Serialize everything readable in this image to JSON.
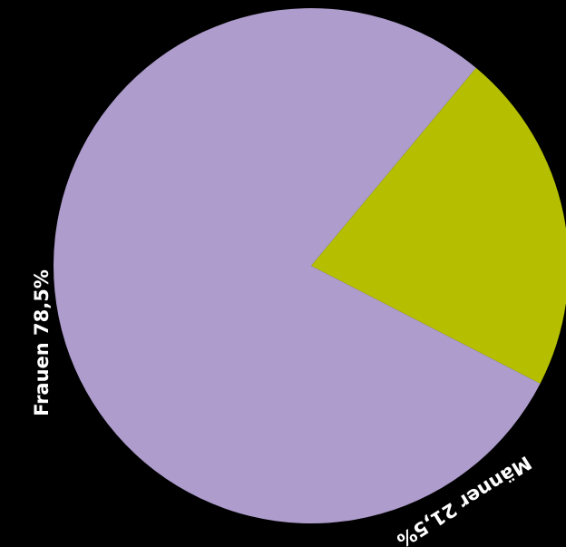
{
  "chart_data": {
    "type": "pie",
    "categories": [
      "Frauen",
      "Männer"
    ],
    "values": [
      78.5,
      21.5
    ],
    "colors": [
      "#ad9ccc",
      "#b5bf00"
    ],
    "labels": [
      "Frauen 78,5%",
      "Männer 21,5%"
    ]
  },
  "background": "#000000",
  "label_color": "#ffffff"
}
